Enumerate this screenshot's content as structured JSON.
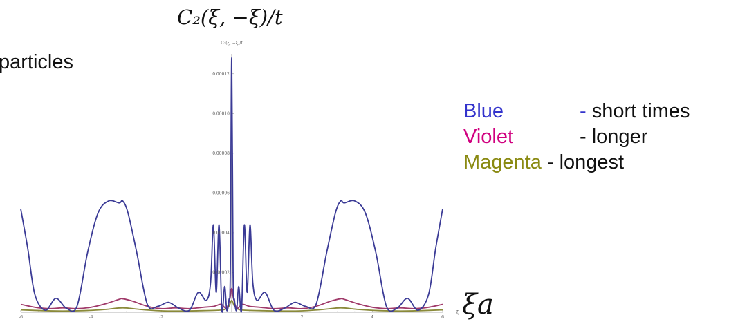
{
  "slide": {
    "partial_word": "particles",
    "title": "C₂(ξ, −ξ)/t",
    "axis_symbol": "ξa"
  },
  "legend": [
    {
      "name": "Blue",
      "sep": "-",
      "desc": "short times",
      "color": "#3333cc",
      "sep_color": "#3333cc"
    },
    {
      "name": "Violet",
      "sep": "-",
      "desc": "longer",
      "color": "#d0007f",
      "sep_color": "#111111"
    },
    {
      "name": "Magenta",
      "sep": "-",
      "desc": "longest",
      "color": "#8a8a12",
      "sep_color": "#111111"
    }
  ],
  "chart_data": {
    "type": "line",
    "title": "C₂(ξ, −ξ)/t",
    "xlabel": "ξ",
    "ylabel": "",
    "xlim": [
      -6,
      6
    ],
    "ylim": [
      0,
      0.00013
    ],
    "x_ticks": [
      "-6",
      "-4",
      "-2",
      "2",
      "4",
      "6"
    ],
    "y_ticks": [
      "0.00002",
      "0.00004",
      "0.00006",
      "0.00008",
      "0.00010",
      "0.00012"
    ],
    "series": [
      {
        "name": "Blue",
        "color": "#3b3b96",
        "x": [
          -6,
          -5.8,
          -5.6,
          -5.3,
          -5,
          -4.7,
          -4.4,
          -4.1,
          -3.8,
          -3.5,
          -3.2,
          -3.1,
          -2.95,
          -2.7,
          -2.4,
          -2.1,
          -1.8,
          -1.5,
          -1.2,
          -0.95,
          -0.72,
          -0.6,
          -0.52,
          -0.44,
          -0.36,
          -0.28,
          -0.2,
          -0.14,
          -0.08,
          -0.04,
          0,
          0.04,
          0.08,
          0.14,
          0.2,
          0.28,
          0.36,
          0.44,
          0.52,
          0.6,
          0.72,
          0.95,
          1.2,
          1.5,
          1.8,
          2.1,
          2.4,
          2.7,
          2.95,
          3.1,
          3.2,
          3.5,
          3.8,
          4.1,
          4.4,
          4.7,
          5,
          5.3,
          5.6,
          5.8,
          6
        ],
        "values": [
          5.2e-05,
          3.2e-05,
          9e-06,
          1e-06,
          7e-06,
          2e-06,
          3e-06,
          3e-05,
          5e-05,
          5.6e-05,
          5.5e-05,
          5.6e-05,
          5e-05,
          3e-05,
          4e-06,
          3e-06,
          5e-06,
          2e-06,
          1e-06,
          1e-05,
          6e-06,
          1.5e-05,
          4.4e-05,
          1e-05,
          4.4e-05,
          1e-06,
          1.3e-05,
          1e-06,
          6e-06,
          2e-05,
          0.000128,
          2e-05,
          6e-06,
          1e-06,
          1.3e-05,
          1e-06,
          4.4e-05,
          1e-05,
          4.4e-05,
          1.5e-05,
          6e-06,
          1e-05,
          1e-06,
          2e-06,
          5e-06,
          3e-06,
          4e-06,
          3e-05,
          5e-05,
          5.6e-05,
          5.5e-05,
          5.6e-05,
          5e-05,
          3e-05,
          3e-06,
          2e-06,
          7e-06,
          1e-06,
          9e-06,
          3.2e-05,
          5.2e-05
        ]
      },
      {
        "name": "Violet",
        "color": "#a03a6a",
        "x": [
          -6,
          -5.6,
          -5.2,
          -4.8,
          -4.4,
          -4,
          -3.6,
          -3.2,
          -3.1,
          -2.8,
          -2.4,
          -2,
          -1.6,
          -1.2,
          -0.8,
          -0.5,
          -0.3,
          -0.15,
          -0.05,
          0,
          0.05,
          0.15,
          0.3,
          0.5,
          0.8,
          1.2,
          1.6,
          2,
          2.4,
          2.8,
          3.1,
          3.2,
          3.6,
          4,
          4.4,
          4.8,
          5.2,
          5.6,
          6
        ],
        "values": [
          4e-06,
          2.5e-06,
          1.8e-06,
          2.2e-06,
          1.8e-06,
          2.5e-06,
          4.2e-06,
          6.5e-06,
          6.8e-06,
          5.5e-06,
          3e-06,
          1.8e-06,
          2.2e-06,
          1.8e-06,
          2.5e-06,
          3e-06,
          4e-06,
          2e-06,
          7e-06,
          1.2e-05,
          7e-06,
          2e-06,
          4e-06,
          3e-06,
          2.5e-06,
          1.8e-06,
          2.2e-06,
          1.8e-06,
          3e-06,
          5.5e-06,
          6.8e-06,
          6.5e-06,
          4.2e-06,
          2.5e-06,
          1.8e-06,
          2.2e-06,
          1.8e-06,
          2.5e-06,
          4e-06
        ]
      },
      {
        "name": "Magenta",
        "color": "#8a8a3a",
        "x": [
          -6,
          -5.4,
          -4.8,
          -4.2,
          -3.6,
          -3.1,
          -2.6,
          -2,
          -1.4,
          -0.8,
          -0.4,
          -0.2,
          -0.08,
          0,
          0.08,
          0.2,
          0.4,
          0.8,
          1.4,
          2,
          2.6,
          3.1,
          3.6,
          4.2,
          4.8,
          5.4,
          6
        ],
        "values": [
          1.2e-06,
          8e-07,
          6e-07,
          8e-07,
          1.4e-06,
          2.2e-06,
          1.4e-06,
          7e-07,
          6e-07,
          8e-07,
          1e-06,
          1.4e-06,
          3e-06,
          6e-06,
          3e-06,
          1.4e-06,
          1e-06,
          8e-07,
          6e-07,
          7e-07,
          1.4e-06,
          2.2e-06,
          1.4e-06,
          8e-07,
          6e-07,
          8e-07,
          1.2e-06
        ]
      }
    ]
  }
}
